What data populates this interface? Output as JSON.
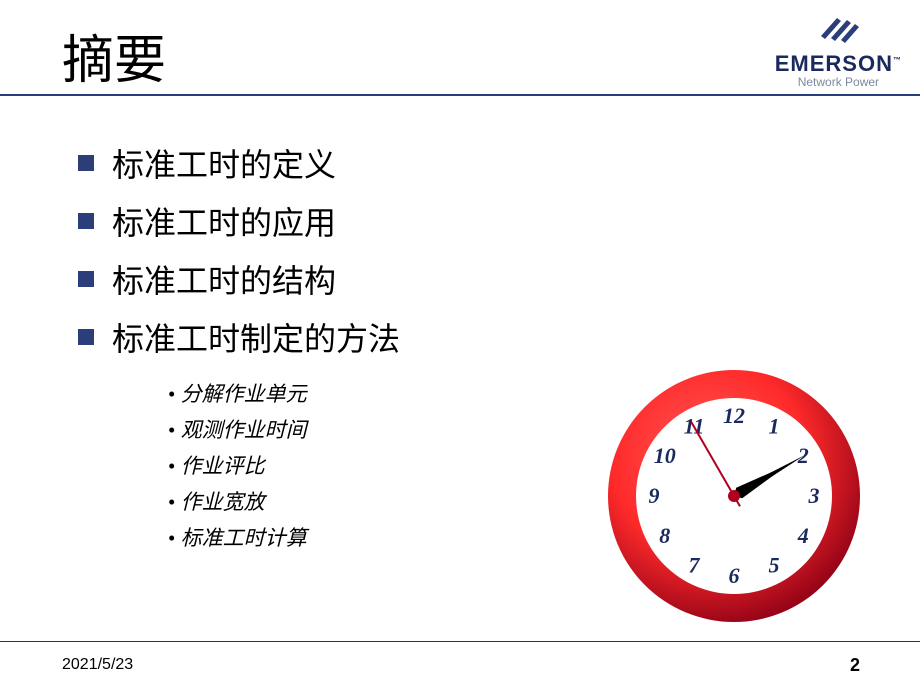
{
  "title": "摘要",
  "logo": {
    "text": "EMERSON",
    "subtitle": "Network Power",
    "tm": "™",
    "mark_color": "#2b3e7a"
  },
  "divider_color": "#2b3e7a",
  "main_items": [
    "标准工时的定义",
    "标准工时的应用",
    "标准工时的结构",
    "标准工时制定的方法"
  ],
  "bullet_color": "#2b3e7a",
  "sub_items": [
    "分解作业单元",
    "观测作业时间",
    "作业评比",
    "作业宽放",
    "标准工时计算"
  ],
  "clock": {
    "rim_outer": "#b00020",
    "rim_inner": "#ff2a2a",
    "face": "#ffffff",
    "numbers_color": "#1a2a5e",
    "numbers_font_style": "italic",
    "numbers": [
      "12",
      "1",
      "2",
      "3",
      "4",
      "5",
      "6",
      "7",
      "8",
      "9",
      "10",
      "11"
    ],
    "hour_hand_angle": 60,
    "minute_hand_angle": 60,
    "second_hand_angle": 330,
    "hand_color": "#000000",
    "second_hand_color": "#b00020",
    "center_dot": "#b00020"
  },
  "footer": {
    "date": "2021/5/23",
    "page": "2",
    "line_color": "#333333"
  }
}
